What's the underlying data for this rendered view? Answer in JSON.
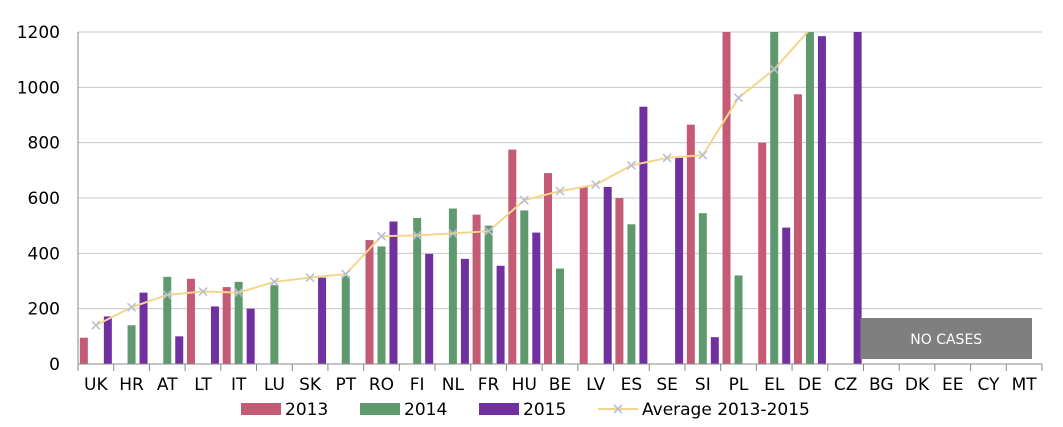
{
  "chart_data": {
    "type": "bar",
    "title": "",
    "xlabel": "",
    "ylabel": "",
    "ylim": [
      0,
      1200
    ],
    "yticks": [
      0,
      200,
      400,
      600,
      800,
      1000,
      1200
    ],
    "grid": true,
    "categories": [
      "UK",
      "HR",
      "AT",
      "LT",
      "IT",
      "LU",
      "SK",
      "PT",
      "RO",
      "FI",
      "NL",
      "FR",
      "HU",
      "BE",
      "LV",
      "ES",
      "SE",
      "SI",
      "PL",
      "EL",
      "DE",
      "CZ",
      "BG",
      "DK",
      "EE",
      "CY",
      "MT"
    ],
    "series": [
      {
        "name": "2013",
        "color": "#c55a75",
        "values": [
          95,
          null,
          null,
          308,
          278,
          null,
          null,
          null,
          448,
          null,
          null,
          540,
          775,
          690,
          640,
          600,
          null,
          865,
          1200,
          800,
          975,
          null,
          null,
          null,
          null,
          null,
          null
        ]
      },
      {
        "name": "2014",
        "color": "#5f9a6e",
        "values": [
          null,
          140,
          315,
          null,
          297,
          285,
          null,
          318,
          425,
          528,
          562,
          500,
          555,
          345,
          null,
          505,
          null,
          545,
          320,
          1200,
          1200,
          null,
          null,
          null,
          null,
          null,
          null
        ]
      },
      {
        "name": "2015",
        "color": "#7030a0",
        "values": [
          172,
          258,
          100,
          208,
          200,
          null,
          312,
          null,
          515,
          398,
          380,
          355,
          475,
          null,
          640,
          930,
          745,
          97,
          null,
          493,
          1185,
          1200,
          null,
          null,
          null,
          null,
          null
        ]
      }
    ],
    "line_series": {
      "name": "Average 2013-2015",
      "color": "#f5d58c",
      "marker_color": "#b8bfd2",
      "values": [
        140,
        205,
        250,
        262,
        258,
        297,
        312,
        325,
        462,
        465,
        472,
        480,
        592,
        625,
        648,
        718,
        745,
        755,
        962,
        1065,
        1210,
        null,
        null,
        null,
        null,
        null,
        null
      ]
    },
    "legend_position": "bottom",
    "annotation": {
      "label": "NO CASES",
      "color": "#7f7f7f",
      "start_category": "BG",
      "end_category": "MT"
    }
  }
}
